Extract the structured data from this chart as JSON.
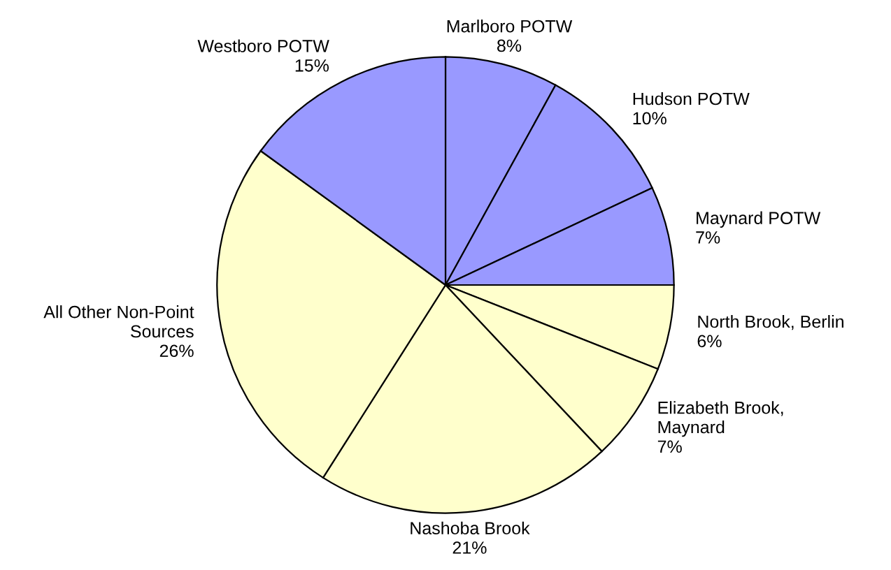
{
  "chart_data": {
    "type": "pie",
    "categories": [
      "Marlboro POTW",
      "Hudson POTW",
      "Maynard POTW",
      "North Brook, Berlin",
      "Elizabeth Brook,\nMaynard",
      "Nashoba Brook",
      "All Other Non-Point\nSources",
      "Westboro POTW"
    ],
    "values": [
      8,
      10,
      7,
      6,
      7,
      21,
      26,
      15
    ],
    "value_labels": [
      "8%",
      "10%",
      "7%",
      "6%",
      "7%",
      "21%",
      "26%",
      "15%"
    ],
    "colors": [
      "#9999ff",
      "#9999ff",
      "#9999ff",
      "#ffffcc",
      "#ffffcc",
      "#ffffcc",
      "#ffffcc",
      "#9999ff"
    ]
  }
}
